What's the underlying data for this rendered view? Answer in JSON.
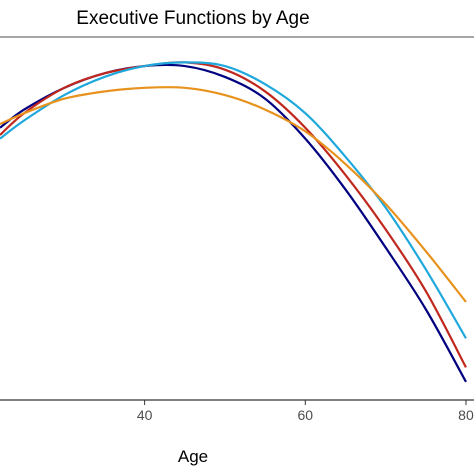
{
  "chart_data": {
    "type": "line",
    "title": "Executive Functions by Age",
    "xlabel": "Age",
    "ylabel": "",
    "xlim": [
      22,
      81
    ],
    "ylim": [
      0,
      1
    ],
    "x_ticks": [
      40,
      60,
      80
    ],
    "x_tick_labels": [
      "40",
      "60",
      "80"
    ],
    "grid": false,
    "legend": "none",
    "series": [
      {
        "color": "#000080",
        "x": [
          22,
          25,
          30,
          35,
          40,
          45,
          50,
          55,
          60,
          65,
          70,
          75,
          80
        ],
        "y": [
          0.75,
          0.8,
          0.86,
          0.9,
          0.92,
          0.92,
          0.89,
          0.83,
          0.72,
          0.58,
          0.42,
          0.25,
          0.05
        ]
      },
      {
        "color": "#c0281e",
        "x": [
          22,
          25,
          30,
          35,
          40,
          45,
          50,
          55,
          60,
          65,
          70,
          75,
          80
        ],
        "y": [
          0.73,
          0.79,
          0.86,
          0.9,
          0.92,
          0.93,
          0.91,
          0.85,
          0.75,
          0.62,
          0.47,
          0.3,
          0.09
        ]
      },
      {
        "color": "#1ea8dc",
        "x": [
          22,
          25,
          30,
          35,
          40,
          45,
          50,
          55,
          60,
          65,
          70,
          75,
          80
        ],
        "y": [
          0.72,
          0.77,
          0.84,
          0.89,
          0.92,
          0.93,
          0.92,
          0.87,
          0.79,
          0.67,
          0.53,
          0.36,
          0.17
        ]
      },
      {
        "color": "#e8921e",
        "x": [
          22,
          25,
          30,
          35,
          40,
          45,
          50,
          55,
          60,
          65,
          70,
          75,
          80
        ],
        "y": [
          0.76,
          0.79,
          0.83,
          0.85,
          0.86,
          0.86,
          0.84,
          0.8,
          0.74,
          0.65,
          0.54,
          0.41,
          0.27
        ]
      }
    ]
  }
}
